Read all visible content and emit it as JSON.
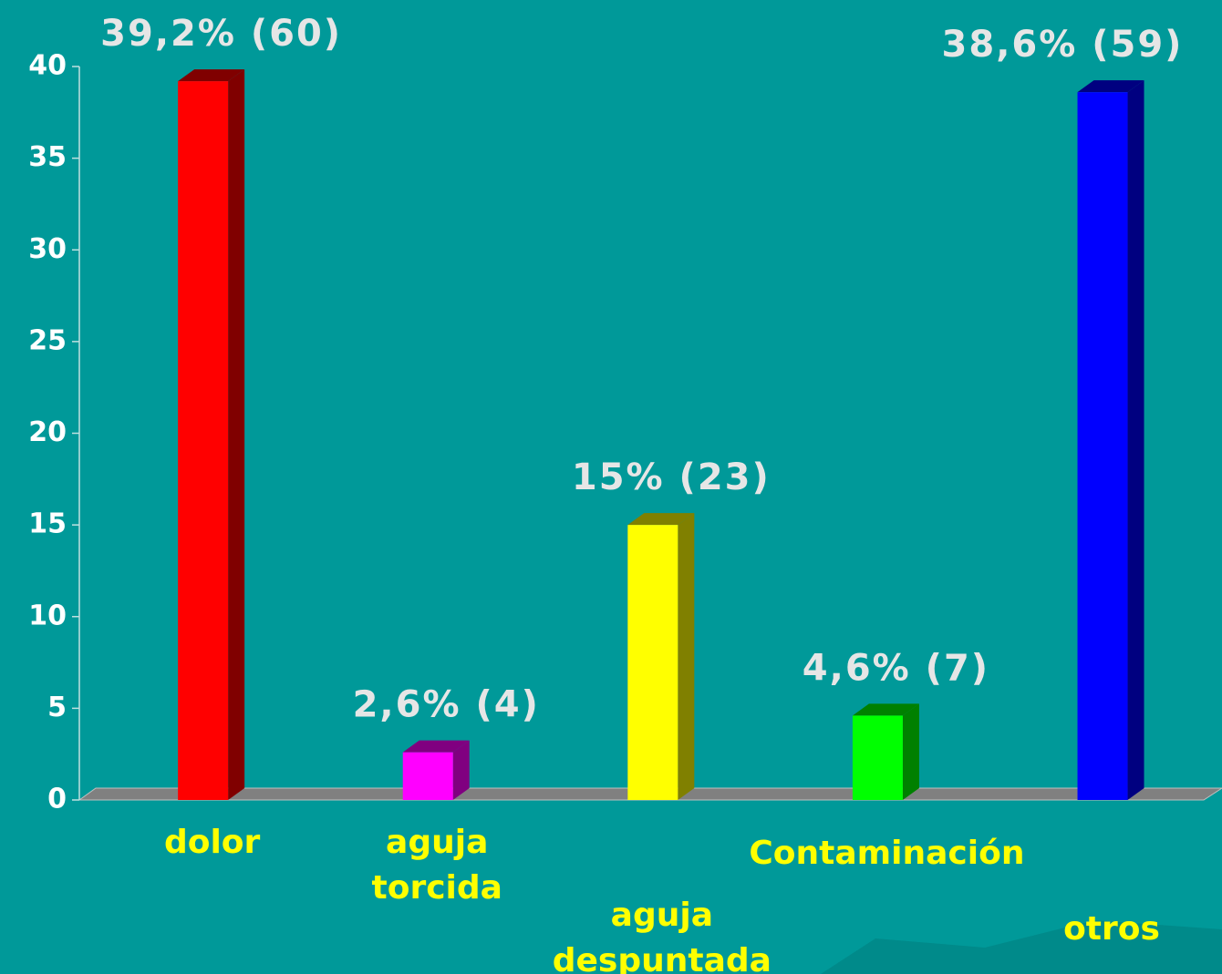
{
  "chart_data": {
    "type": "bar3d",
    "categories": [
      "dolor",
      "aguja\ntorcida",
      "aguja\ndespuntada",
      "Contaminación",
      "otros"
    ],
    "values": [
      39.2,
      2.6,
      15,
      4.6,
      38.6
    ],
    "value_labels": [
      "39,2% (60)",
      "2,6% (4)",
      "15% (23)",
      "4,6% (7)",
      "38,6% (59)"
    ],
    "colors": [
      "#ff0000",
      "#ff00ff",
      "#ffff00",
      "#00ff00",
      "#0000ff"
    ],
    "ylim": [
      0,
      40
    ],
    "yticks": [
      0,
      5,
      10,
      15,
      20,
      25,
      30,
      35,
      40
    ]
  }
}
